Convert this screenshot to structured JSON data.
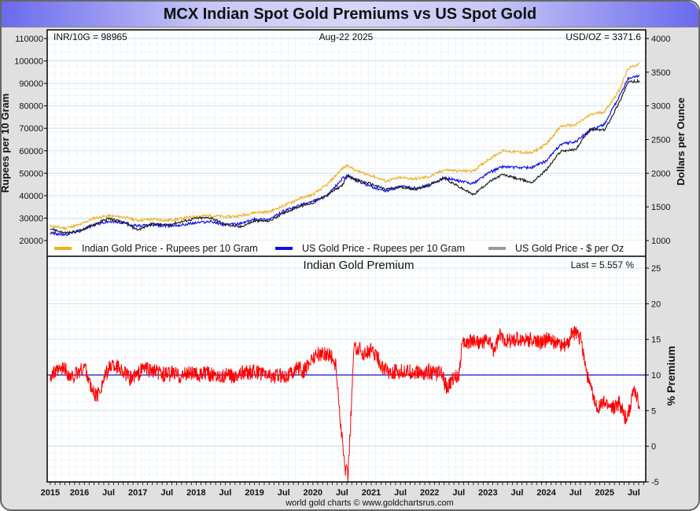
{
  "window": {
    "title": "MCX Indian Spot Gold Premiums vs US Spot Gold"
  },
  "footer": {
    "credit": "world gold charts © www.goldchartsrus.com"
  },
  "chart_data": [
    {
      "type": "line",
      "title": "",
      "annotations": {
        "left": "INR/10G = 98965",
        "center": "Aug-22  2025",
        "right": "USD/OZ = 3371.6"
      },
      "ylabel_left": "Rupees per 10 Gram",
      "ylabel_right": "Dollars per Ounce",
      "yticks_left": [
        "110000",
        "100000",
        "90000",
        "80000",
        "70000",
        "60000",
        "50000",
        "40000",
        "30000",
        "20000"
      ],
      "yticks_right": [
        "4000",
        "3500",
        "3000",
        "2500",
        "2000",
        "1500",
        "1000"
      ],
      "ylim_left": [
        16000,
        114000
      ],
      "ylim_right": [
        857,
        4143
      ],
      "legend_position": "bottom",
      "x": [
        2015.5,
        2015.75,
        2016.0,
        2016.25,
        2016.5,
        2016.75,
        2017.0,
        2017.25,
        2017.5,
        2017.75,
        2018.0,
        2018.25,
        2018.5,
        2018.75,
        2019.0,
        2019.25,
        2019.5,
        2019.75,
        2020.0,
        2020.25,
        2020.5,
        2020.6,
        2020.75,
        2021.0,
        2021.25,
        2021.5,
        2021.75,
        2022.0,
        2022.25,
        2022.5,
        2022.75,
        2023.0,
        2023.25,
        2023.5,
        2023.75,
        2024.0,
        2024.25,
        2024.5,
        2024.75,
        2025.0,
        2025.25,
        2025.4,
        2025.6
      ],
      "series": [
        {
          "name": "Indian Gold Price - Rupees per 10 Gram",
          "color": "#f0b020",
          "axis": "left",
          "values": [
            26500,
            25500,
            27000,
            30000,
            31000,
            30500,
            29000,
            29500,
            29000,
            29800,
            30800,
            31200,
            30500,
            31000,
            32500,
            32800,
            35500,
            38500,
            40500,
            45000,
            52000,
            53500,
            51000,
            49000,
            46500,
            48000,
            47500,
            48500,
            51500,
            51000,
            51000,
            56000,
            60000,
            59500,
            59000,
            63000,
            71000,
            71500,
            76000,
            77500,
            87000,
            96500,
            98965
          ]
        },
        {
          "name": "US Gold Price - Rupees per 10 Gram",
          "color": "#1010f0",
          "axis": "left",
          "values": [
            23500,
            22500,
            24500,
            27000,
            28500,
            28000,
            26500,
            27000,
            26500,
            27000,
            28000,
            28500,
            27000,
            27500,
            29500,
            29500,
            33000,
            35500,
            37500,
            40000,
            47500,
            49000,
            46500,
            44000,
            42000,
            44000,
            43500,
            44500,
            48000,
            46500,
            45500,
            50000,
            53000,
            52500,
            52500,
            55500,
            63000,
            64000,
            69000,
            72000,
            84000,
            92000,
            93700
          ]
        },
        {
          "name": "US Gold Price - $ per Oz",
          "color": "#202020",
          "axis": "right",
          "values": [
            1180,
            1110,
            1140,
            1240,
            1330,
            1270,
            1160,
            1250,
            1230,
            1280,
            1330,
            1340,
            1240,
            1200,
            1290,
            1290,
            1410,
            1500,
            1560,
            1680,
            1820,
            1960,
            1900,
            1840,
            1760,
            1800,
            1760,
            1830,
            1930,
            1800,
            1680,
            1860,
            1980,
            1920,
            1860,
            2050,
            2330,
            2350,
            2650,
            2640,
            3050,
            3350,
            3371.6
          ]
        }
      ]
    },
    {
      "type": "line",
      "title": "Indian Gold Premium",
      "annotations": {
        "right": "Last = 5.557 %"
      },
      "ylabel_right": "% Premium",
      "yticks_right": [
        "25",
        "20",
        "15",
        "10",
        "5",
        "0",
        "-5"
      ],
      "ylim": [
        -5,
        27
      ],
      "reference_line": {
        "value": 10,
        "color": "#1010c0"
      },
      "xticks": [
        "2015",
        "2016",
        "Jul",
        "2017",
        "Jul",
        "2018",
        "Jul",
        "2019",
        "Jul",
        "2020",
        "Jul",
        "2021",
        "Jul",
        "2022",
        "Jul",
        "2023",
        "Jul",
        "2024",
        "Jul",
        "2025",
        "Jul"
      ],
      "x": [
        2015.5,
        2015.6,
        2015.75,
        2015.85,
        2016.0,
        2016.1,
        2016.2,
        2016.3,
        2016.45,
        2016.55,
        2016.7,
        2016.85,
        2017.0,
        2017.1,
        2017.25,
        2017.4,
        2017.5,
        2017.6,
        2017.75,
        2017.9,
        2018.0,
        2018.2,
        2018.4,
        2018.6,
        2018.8,
        2019.0,
        2019.2,
        2019.4,
        2019.6,
        2019.75,
        2019.85,
        2020.0,
        2020.15,
        2020.3,
        2020.4,
        2020.45,
        2020.5,
        2020.55,
        2020.6,
        2020.65,
        2020.7,
        2020.75,
        2020.85,
        2021.0,
        2021.1,
        2021.2,
        2021.3,
        2021.5,
        2021.7,
        2021.9,
        2022.0,
        2022.1,
        2022.2,
        2022.3,
        2022.4,
        2022.5,
        2022.55,
        2022.6,
        2022.75,
        2022.9,
        2023.0,
        2023.1,
        2023.2,
        2023.35,
        2023.5,
        2023.7,
        2023.9,
        2024.0,
        2024.2,
        2024.35,
        2024.45,
        2024.55,
        2024.6,
        2024.7,
        2024.85,
        2025.0,
        2025.15,
        2025.25,
        2025.35,
        2025.42,
        2025.5,
        2025.6
      ],
      "series": [
        {
          "name": "Indian Gold Premium %",
          "color": "#ff0000",
          "values": [
            10,
            10.3,
            11,
            9.5,
            10.5,
            11.2,
            8,
            7,
            10,
            11.5,
            11,
            9.5,
            10,
            11,
            10.5,
            10.2,
            10,
            10.3,
            9.8,
            10.4,
            10,
            10.2,
            10,
            9.9,
            10.3,
            10.4,
            10,
            9.8,
            10.1,
            11,
            10.5,
            12.5,
            13,
            12.8,
            11,
            5.5,
            1,
            -3,
            -4,
            4,
            13.5,
            14,
            13,
            13.5,
            12.5,
            11,
            10.5,
            10.5,
            10.4,
            10.2,
            10.5,
            10.2,
            10.3,
            8,
            9.5,
            10.1,
            14,
            14.5,
            15,
            14.5,
            15,
            13.5,
            15.5,
            14.8,
            15,
            15,
            14.5,
            15,
            14.5,
            14,
            16,
            15.5,
            15,
            10,
            5.5,
            6,
            5.5,
            6,
            4,
            5,
            8,
            5.557
          ]
        }
      ]
    }
  ]
}
